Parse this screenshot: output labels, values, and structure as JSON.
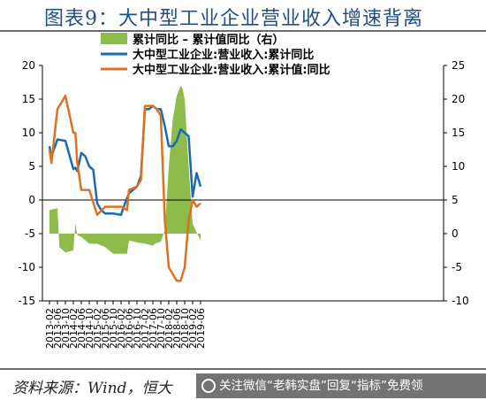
{
  "title": "图表9：大中型工业企业营业收入增速背离",
  "source": "资料来源：Wind，恒大",
  "watermark": "关注微信“老韩实盘”回复“指标”免费领",
  "chart_data": {
    "type": "line",
    "legend": [
      "累计同比 – 累计值同比（右）",
      "大中型工业企业:营业收入:累计同比",
      "大中型工业企业:营业收入:累计值:同比"
    ],
    "colors": {
      "area": "#8dbb4c",
      "line1": "#1a6ab1",
      "line2": "#e07020"
    },
    "x_tick_labels": [
      "2013-02",
      "2013-06",
      "2013-10",
      "2014-02",
      "2014-06",
      "2014-10",
      "2015-02",
      "2015-06",
      "2015-10",
      "2016-02",
      "2016-06",
      "2016-10",
      "2017-02",
      "2017-06",
      "2017-10",
      "2018-02",
      "2018-06",
      "2018-10",
      "2019-02",
      "2019-06"
    ],
    "y_left_ticks": [
      20,
      15,
      10,
      5,
      0,
      -5,
      -10,
      -15
    ],
    "y_right_ticks": [
      25,
      20,
      15,
      10,
      5,
      0,
      -5,
      -10
    ],
    "ylim_left": [
      -15,
      20
    ],
    "ylim_right": [
      -10,
      25
    ],
    "grid": false,
    "legend_position": "top-center",
    "series": [
      {
        "name": "累计同比 – 累计值同比（右）",
        "axis": "right",
        "kind": "area",
        "x": [
          "2013-02",
          "2013-06",
          "2013-07",
          "2013-10",
          "2014-02",
          "2014-03",
          "2014-04",
          "2014-06",
          "2014-10",
          "2015-02",
          "2015-06",
          "2015-10",
          "2016-02",
          "2016-05",
          "2016-06",
          "2016-10",
          "2017-02",
          "2017-06",
          "2017-07",
          "2017-10",
          "2017-12",
          "2018-02",
          "2018-04",
          "2018-06",
          "2018-08",
          "2018-09",
          "2018-10",
          "2018-12",
          "2019-02",
          "2019-04",
          "2019-06"
        ],
        "values": [
          3.5,
          3.8,
          -2.0,
          -2.8,
          -2.5,
          1.5,
          -0.2,
          -0.5,
          -1.5,
          -1.5,
          -2.0,
          -3.0,
          -3.0,
          -3.0,
          -1.0,
          -1.3,
          -1.5,
          -1.8,
          -1.5,
          -1.2,
          0.5,
          10.0,
          17.0,
          20.5,
          22.0,
          21.5,
          20.0,
          10.0,
          1.5,
          0.2,
          -1.0
        ]
      },
      {
        "name": "大中型工业企业:营业收入:累计同比",
        "axis": "left",
        "kind": "line",
        "x": [
          "2013-02",
          "2013-03",
          "2013-06",
          "2013-10",
          "2014-02",
          "2014-03",
          "2014-04",
          "2014-06",
          "2014-08",
          "2014-10",
          "2014-12",
          "2015-02",
          "2015-04",
          "2015-06",
          "2015-10",
          "2015-12",
          "2016-02",
          "2016-04",
          "2016-06",
          "2016-10",
          "2016-12",
          "2017-02",
          "2017-04",
          "2017-06",
          "2017-08",
          "2017-10",
          "2017-12",
          "2018-02",
          "2018-04",
          "2018-06",
          "2018-08",
          "2018-10",
          "2018-12",
          "2019-02",
          "2019-04",
          "2019-06"
        ],
        "values": [
          8.0,
          6.5,
          9.0,
          8.8,
          4.6,
          4.8,
          4.3,
          7.0,
          6.5,
          5.0,
          4.5,
          -0.5,
          -1.5,
          -2.0,
          -2.0,
          -2.1,
          -2.2,
          -0.5,
          1.0,
          2.0,
          3.6,
          13.5,
          13.5,
          14.0,
          13.5,
          13.5,
          11.0,
          8.0,
          8.0,
          8.8,
          10.5,
          10.0,
          9.5,
          0.5,
          4.0,
          2.0
        ]
      },
      {
        "name": "大中型工业企业:营业收入:累计值:同比",
        "axis": "left",
        "kind": "line",
        "x": [
          "2013-02",
          "2013-03",
          "2013-06",
          "2013-10",
          "2014-02",
          "2014-03",
          "2014-04",
          "2014-06",
          "2014-10",
          "2015-02",
          "2015-06",
          "2015-10",
          "2016-02",
          "2016-05",
          "2016-06",
          "2016-10",
          "2016-12",
          "2017-02",
          "2017-06",
          "2017-08",
          "2017-10",
          "2017-12",
          "2018-02",
          "2018-04",
          "2018-06",
          "2018-08",
          "2018-10",
          "2018-12",
          "2019-02",
          "2019-04",
          "2019-06"
        ],
        "values": [
          7.5,
          5.5,
          13.5,
          15.5,
          10.0,
          10.0,
          5.5,
          1.5,
          1.5,
          -2.2,
          -1.0,
          -1.0,
          -1.0,
          -1.5,
          1.5,
          2.0,
          3.0,
          14.0,
          14.0,
          13.5,
          12.5,
          -3.0,
          -10.0,
          -11.0,
          -12.0,
          -12.0,
          -10.0,
          -3.0,
          0.0,
          -1.0,
          -0.5
        ]
      }
    ]
  }
}
